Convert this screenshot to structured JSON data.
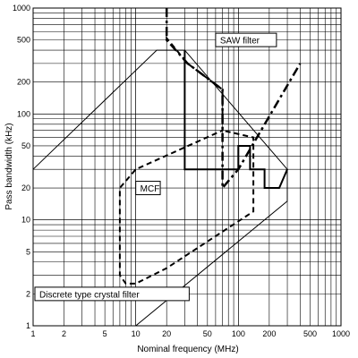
{
  "chart_data": {
    "type": "area",
    "xscale": "log",
    "yscale": "log",
    "xlim": [
      1,
      1000
    ],
    "ylim": [
      1,
      1000
    ],
    "grid": true,
    "xlabel": "Nominal frequency (MHz)",
    "ylabel": "Pass bandwidth (kHz)",
    "xticks": [
      1,
      2,
      5,
      10,
      20,
      50,
      100,
      200,
      500,
      1000
    ],
    "xtick_labels": [
      "1",
      "2",
      "5",
      "10",
      "20",
      "50",
      "100",
      "200",
      "500",
      "1000"
    ],
    "yticks": [
      1,
      2,
      5,
      10,
      20,
      50,
      100,
      200,
      500,
      1000
    ],
    "ytick_labels": [
      "1",
      "2",
      "5",
      "10",
      "20",
      "50",
      "100",
      "200",
      "500",
      "1000"
    ],
    "regions": [
      {
        "label": "Discrete type crystal filter",
        "style": "solid-thin",
        "points": [
          [
            1,
            30
          ],
          [
            16,
            400
          ],
          [
            30,
            400
          ],
          [
            300,
            30
          ],
          [
            300,
            15
          ],
          [
            10,
            1
          ]
        ]
      },
      {
        "label": "MCF",
        "style": "solid-thick",
        "points": [
          [
            30,
            400
          ],
          [
            30,
            30
          ],
          [
            100,
            30
          ],
          [
            100,
            50
          ],
          [
            130,
            50
          ],
          [
            130,
            30
          ],
          [
            180,
            30
          ],
          [
            180,
            20
          ],
          [
            250,
            20
          ],
          [
            300,
            30
          ]
        ]
      },
      {
        "label": "",
        "style": "dashed",
        "points": [
          [
            20,
            500
          ],
          [
            20,
            520
          ],
          [
            32,
            300
          ],
          [
            70,
            170
          ],
          [
            70,
            70
          ],
          [
            10,
            30
          ],
          [
            7,
            20
          ],
          [
            7,
            3
          ],
          [
            8,
            2.5
          ],
          [
            10,
            2.5
          ],
          [
            20,
            3.5
          ],
          [
            140,
            12
          ],
          [
            140,
            60
          ],
          [
            70,
            70
          ]
        ]
      },
      {
        "label": "SAW filter",
        "style": "dash-dot",
        "points": [
          [
            20,
            1000
          ],
          [
            20,
            500
          ],
          [
            32,
            300
          ],
          [
            70,
            170
          ],
          [
            70,
            20
          ],
          [
            100,
            30
          ],
          [
            400,
            300
          ]
        ]
      }
    ],
    "annotations": [
      {
        "text": "SAW filter",
        "x": 60,
        "y": 500
      },
      {
        "text": "MCF",
        "x": 10,
        "y": 20
      },
      {
        "text": "Discrete type crystal filter",
        "x": 1,
        "y": 2
      }
    ]
  }
}
